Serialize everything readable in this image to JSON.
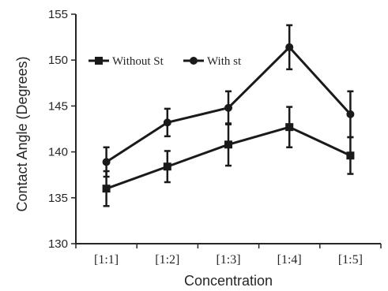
{
  "chart_data": {
    "type": "line",
    "xlabel": "Concentration",
    "ylabel": "Contact Angle (Degrees)",
    "categories": [
      "[1:1]",
      "[1:2]",
      "[1:3]",
      "[1:4]",
      "[1:5]"
    ],
    "ylim": [
      130,
      155
    ],
    "yticks": [
      130,
      135,
      140,
      145,
      150,
      155
    ],
    "grid": false,
    "legend_position": "top-left",
    "series": [
      {
        "name": "Without St",
        "marker": "square",
        "color": "#1a1a1a",
        "values": [
          136.0,
          138.4,
          140.8,
          142.7,
          139.6
        ],
        "errors": [
          1.9,
          1.7,
          2.3,
          2.2,
          2.0
        ]
      },
      {
        "name": "With st",
        "marker": "circle",
        "color": "#1a1a1a",
        "values": [
          138.9,
          143.2,
          144.8,
          151.4,
          144.1
        ],
        "errors": [
          1.6,
          1.5,
          1.8,
          2.4,
          2.5
        ]
      }
    ]
  }
}
